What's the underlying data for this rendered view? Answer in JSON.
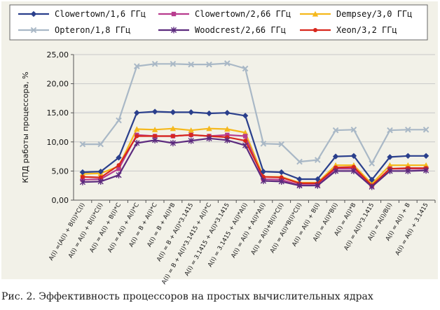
{
  "figure": {
    "caption": "Рис. 2. Эффективность процессоров на простых вычислительных ядрах"
  },
  "chart_data": {
    "type": "line",
    "title": "",
    "xlabel": "",
    "ylabel": "КПД работы процессора, %",
    "ylim": [
      0,
      25
    ],
    "y_ticks": [
      "0,00",
      "5,00",
      "10,00",
      "15,00",
      "20,00",
      "25,00"
    ],
    "grid": "horizontal",
    "legend_position": "top",
    "categories": [
      "A(I) =(A(I) + B(I))*C(I)",
      "A(I) = A(I) + B(I)*C(I)",
      "A(I) = A(I) + B(I)*C",
      "A(I) = A(I) + A(I)*C",
      "A(I) = B + A(I)*C",
      "A(I) = B + A(I)*B",
      "A(I) = B + A(I)*3.1415",
      "A(I) = B + A(I)*3.1415 + A(I)*C",
      "A(I) = 3.1415 + A(I)*3.1415",
      "A(I) = 3.1415 + A(I)*A(I)",
      "A(I) = A(I) + A(I)*A(I)",
      "A(I) = A(I)+B(I)*C(I)",
      "A(I) = A(I)*B(I)*C(I)",
      "A(I) = A(I) + B(I)",
      "A(I) = A(I)*B(I)",
      "A(I) = A(I)*B",
      "A(I) = A(I)*3.1415",
      "A(I) = A(I)/B(I)",
      "A(I) = A(I) + B",
      "A(I) = A(I) + 3.1415"
    ],
    "series": [
      {
        "name": "Clowertown/1,6 ГГц",
        "color": "#2a3f8c",
        "marker": "diamond",
        "values": [
          4.8,
          4.9,
          7.3,
          15.0,
          15.2,
          15.1,
          15.1,
          14.9,
          15.0,
          14.5,
          4.9,
          4.8,
          3.6,
          3.6,
          7.5,
          7.6,
          3.5,
          7.4,
          7.6,
          7.6
        ]
      },
      {
        "name": "Clowertown/2,66 ГГц",
        "color": "#b83c8e",
        "marker": "square",
        "values": [
          3.5,
          3.6,
          5.4,
          11.2,
          11.0,
          11.0,
          11.2,
          11.0,
          11.2,
          11.0,
          3.6,
          3.5,
          2.6,
          2.6,
          5.4,
          5.4,
          2.4,
          5.4,
          5.4,
          5.4
        ]
      },
      {
        "name": "Dempsey/3,0 ГГц",
        "color": "#f5b81c",
        "marker": "triangle",
        "values": [
          4.5,
          4.6,
          5.8,
          12.2,
          12.1,
          12.3,
          12.0,
          12.3,
          12.2,
          11.6,
          4.0,
          4.0,
          3.0,
          3.0,
          6.0,
          6.0,
          2.8,
          6.0,
          6.0,
          6.0
        ]
      },
      {
        "name": "Opteron/1,8 ГГц",
        "color": "#a9b8c6",
        "marker": "x",
        "values": [
          9.6,
          9.6,
          13.7,
          23.0,
          23.4,
          23.4,
          23.3,
          23.3,
          23.5,
          22.6,
          9.7,
          9.6,
          6.6,
          6.9,
          12.0,
          12.1,
          6.3,
          12.0,
          12.1,
          12.1
        ]
      },
      {
        "name": "Woodcrest/2,66 ГГц",
        "color": "#5c2a7e",
        "marker": "star",
        "values": [
          3.1,
          3.2,
          4.3,
          9.8,
          10.3,
          9.8,
          10.2,
          10.6,
          10.3,
          9.4,
          3.3,
          3.2,
          2.5,
          2.5,
          5.0,
          5.0,
          2.3,
          5.0,
          5.0,
          5.1
        ]
      },
      {
        "name": "Xeon/3,2 ГГц",
        "color": "#d8261c",
        "marker": "dot",
        "values": [
          4.0,
          3.9,
          6.0,
          11.0,
          11.0,
          11.0,
          11.2,
          11.0,
          10.8,
          10.2,
          4.0,
          3.9,
          2.9,
          2.9,
          5.6,
          5.7,
          2.5,
          5.4,
          5.5,
          5.5
        ]
      }
    ]
  }
}
